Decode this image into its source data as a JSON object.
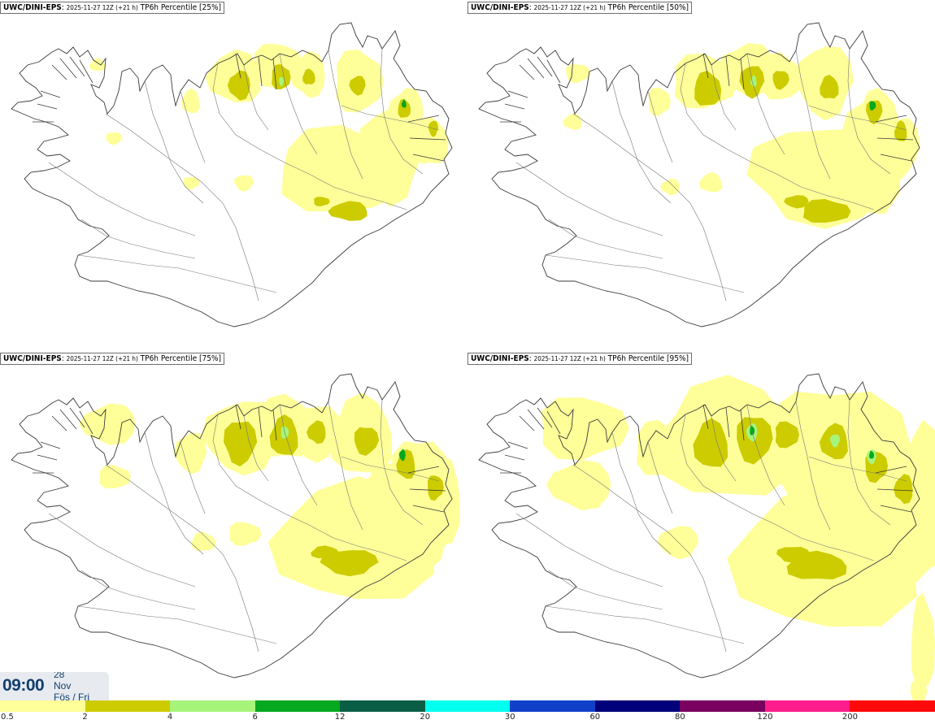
{
  "panels": [
    {
      "model": "UWC/DINI-EPS",
      "run": "2025-11-27 12Z (+21 h)",
      "field": "TP6h Percentile [25%]"
    },
    {
      "model": "UWC/DINI-EPS",
      "run": "2025-11-27 12Z (+21 h)",
      "field": "TP6h Percentile [50%]"
    },
    {
      "model": "UWC/DINI-EPS",
      "run": "2025-11-27 12Z (+21 h)",
      "field": "TP6h Percentile [75%]"
    },
    {
      "model": "UWC/DINI-EPS",
      "run": "2025-11-27 12Z (+21 h)",
      "field": "TP6h Percentile [95%]"
    }
  ],
  "valid_time": {
    "hour": "09:00",
    "day": "28",
    "month": "Nov",
    "weekday": "Fös / Fri"
  },
  "legend": {
    "ticks": [
      "0.5",
      "2",
      "4",
      "6",
      "12",
      "20",
      "30",
      "60",
      "80",
      "120",
      "200"
    ],
    "colors": [
      "#ffff99",
      "#cccc00",
      "#a6f57a",
      "#05a81e",
      "#0b5e46",
      "#00ffee",
      "#1040c8",
      "#00007a",
      "#7a0060",
      "#ff1e8c",
      "#ff0a0a"
    ]
  }
}
